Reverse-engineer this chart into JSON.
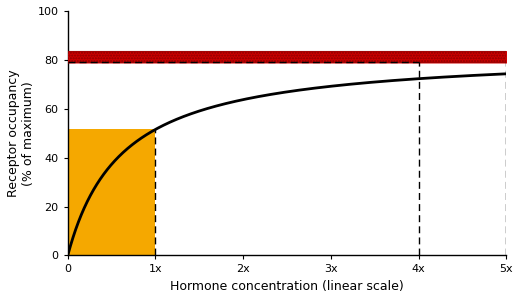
{
  "title": "",
  "xlabel": "Hormone concentration (linear scale)",
  "ylabel": "Receptor occupancy\n(% of maximum)",
  "xlim": [
    0,
    5
  ],
  "ylim": [
    0,
    100
  ],
  "xticks": [
    0,
    1,
    2,
    3,
    4,
    5
  ],
  "xticklabels": [
    "0",
    "1x",
    "2x",
    "3x",
    "4x",
    "5x"
  ],
  "yticks": [
    0,
    20,
    40,
    60,
    80,
    100
  ],
  "curve_color": "#000000",
  "curve_Kd": 0.62,
  "curve_Vmax": 83.5,
  "orange_x0": 0,
  "orange_x1": 1.0,
  "orange_y0": 0,
  "orange_color": "#F5A800",
  "red_band_low": 79.0,
  "red_band_high": 83.5,
  "red_color": "#CC0000",
  "dashed_vline_x1": 1.0,
  "dashed_vline_x4": 4.0,
  "dashed_hline_y": 79.0,
  "dashed_color": "#000000",
  "background_color": "#ffffff",
  "font_size_labels": 9,
  "font_size_ticks": 8
}
